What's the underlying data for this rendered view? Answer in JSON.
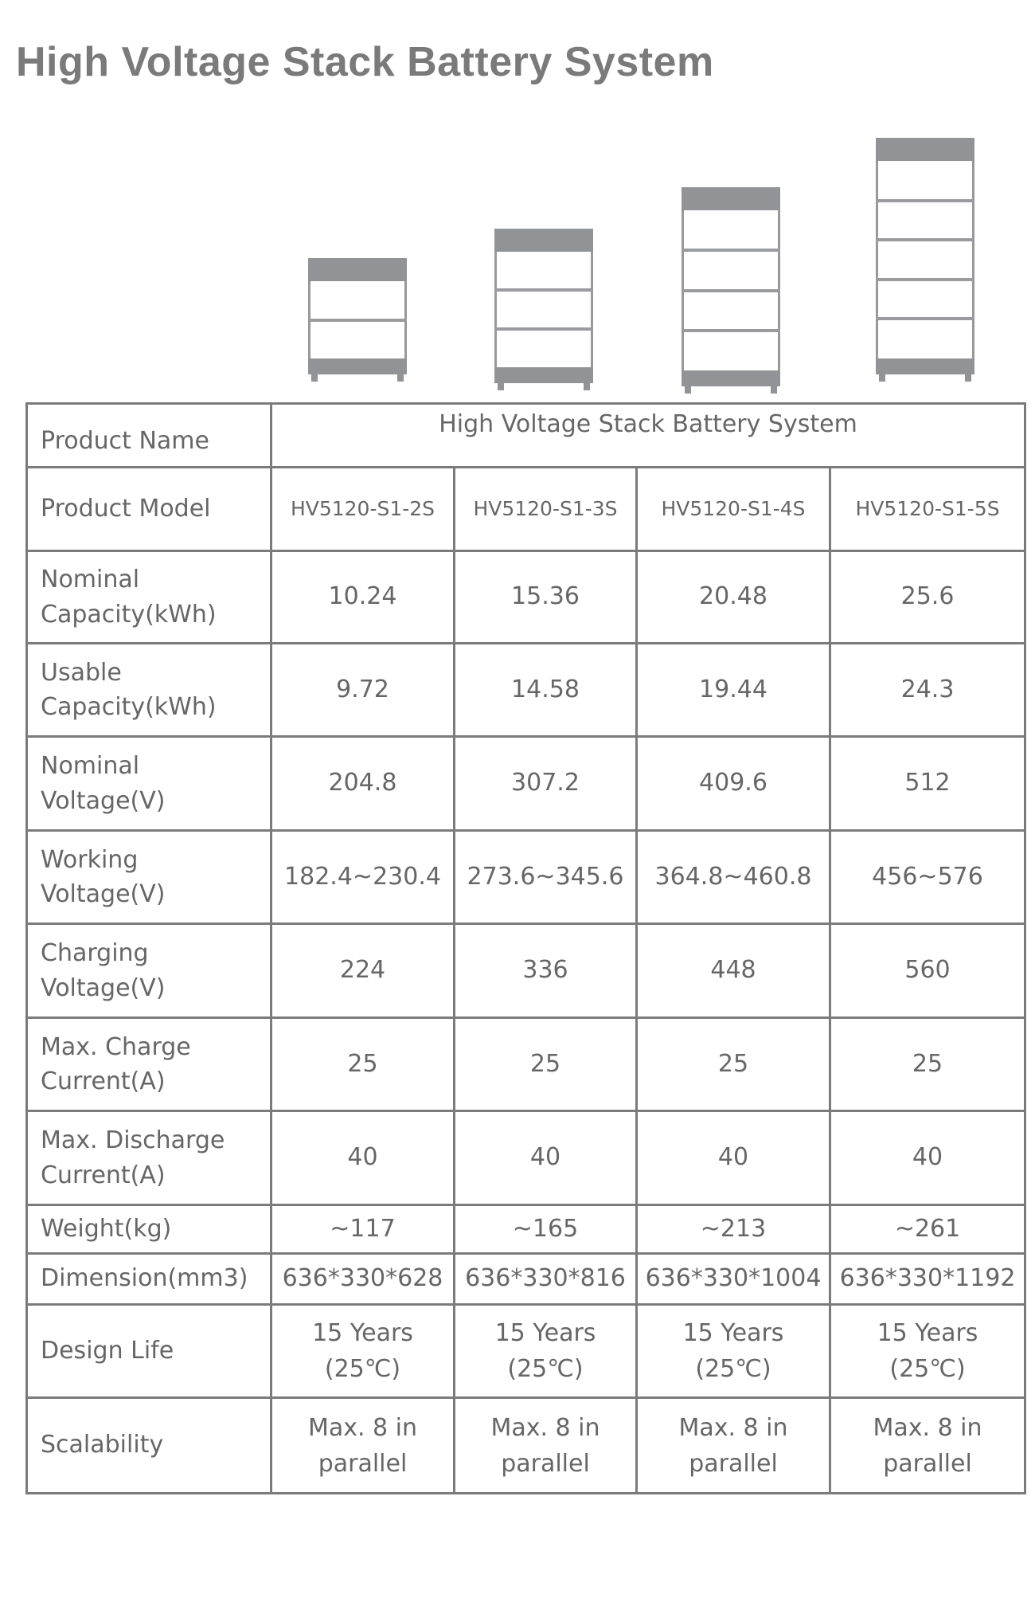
{
  "title": "High Voltage Stack Battery System",
  "product_images": [
    {
      "model": "HV5120-S1-2S",
      "modules": 2
    },
    {
      "model": "HV5120-S1-3S",
      "modules": 3
    },
    {
      "model": "HV5120-S1-4S",
      "modules": 4
    },
    {
      "model": "HV5120-S1-5S",
      "modules": 5
    }
  ],
  "table": {
    "product_name_label": "Product Name",
    "product_name_value": "High Voltage Stack Battery System",
    "product_model_label": "Product Model",
    "models": [
      "HV5120-S1-2S",
      "HV5120-S1-3S",
      "HV5120-S1-4S",
      "HV5120-S1-5S"
    ],
    "rows": [
      {
        "label": "Nominal Capacity(kWh)",
        "values": [
          "10.24",
          "15.36",
          "20.48",
          "25.6"
        ]
      },
      {
        "label": "Usable Capacity(kWh)",
        "values": [
          "9.72",
          "14.58",
          "19.44",
          "24.3"
        ]
      },
      {
        "label": "Nominal Voltage(V)",
        "values": [
          "204.8",
          "307.2",
          "409.6",
          "512"
        ]
      },
      {
        "label": "Working Voltage(V)",
        "values": [
          "182.4~230.4",
          "273.6~345.6",
          "364.8~460.8",
          "456~576"
        ]
      },
      {
        "label": "Charging Voltage(V)",
        "values": [
          "224",
          "336",
          "448",
          "560"
        ]
      },
      {
        "label": "Max. Charge Current(A)",
        "values": [
          "25",
          "25",
          "25",
          "25"
        ]
      },
      {
        "label": "Max. Discharge Current(A)",
        "values": [
          "40",
          "40",
          "40",
          "40"
        ]
      },
      {
        "label": "Weight(kg)",
        "values": [
          "~117",
          "~165",
          "~213",
          "~261"
        ]
      },
      {
        "label": "Dimension(mm3)",
        "values": [
          "636*330*628",
          "636*330*816",
          "636*330*1004",
          "636*330*1192"
        ]
      },
      {
        "label": "Design Life",
        "values": [
          "15  Years (25℃)",
          "15  Years (25℃)",
          "15  Years (25℃)",
          "15  Years (25℃)"
        ]
      },
      {
        "label": "Scalability",
        "values": [
          "Max. 8 in parallel",
          "Max. 8 in parallel",
          "Max. 8 in parallel",
          "Max. 8 in parallel"
        ]
      }
    ]
  }
}
